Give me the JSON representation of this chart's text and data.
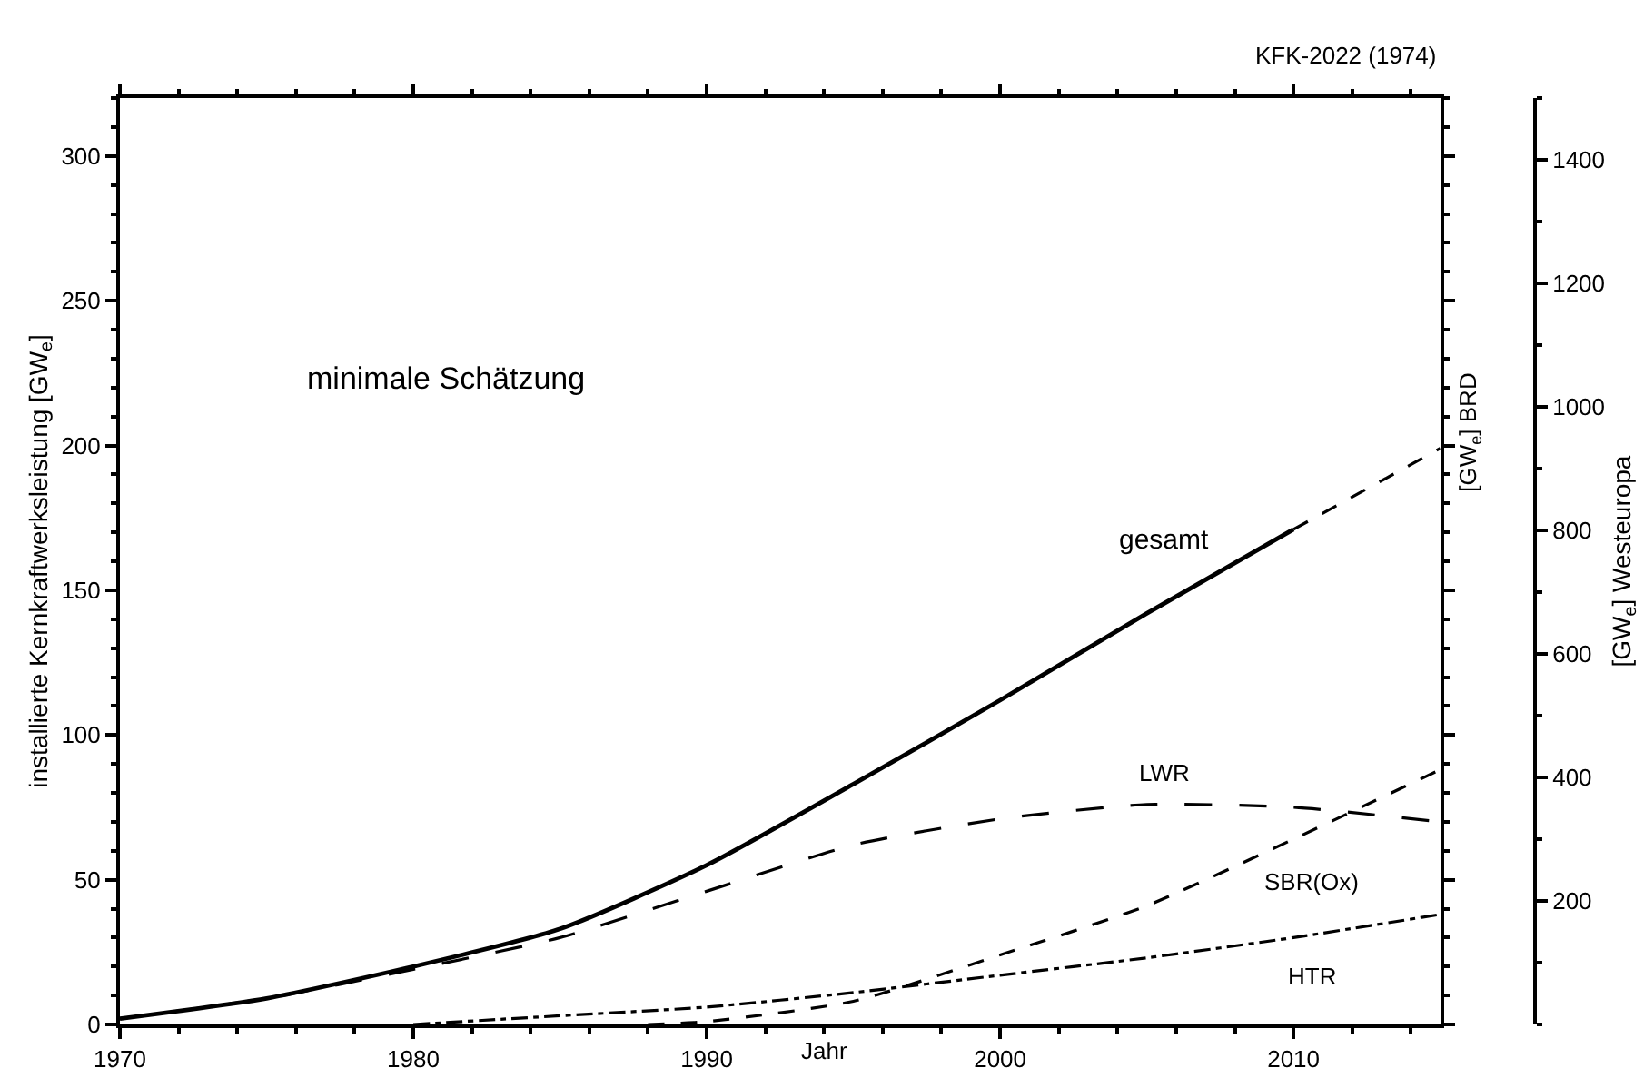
{
  "chart_data": {
    "type": "line",
    "series": [
      {
        "name": "gesamt",
        "color": "#000000",
        "line_style": "solid",
        "x": [
          1970,
          1975,
          1980,
          1985,
          1990,
          1995,
          2000,
          2005,
          2010
        ],
        "values": [
          2,
          9,
          20,
          33,
          55,
          83,
          112,
          142,
          171
        ]
      },
      {
        "color": "#000000",
        "line_style": "dashed",
        "x": [
          2010,
          2015
        ],
        "values": [
          171,
          199
        ]
      },
      {
        "name": "LWR",
        "color": "#000000",
        "line_style": "longdash",
        "x": [
          1970,
          1975,
          1980,
          1985,
          1990,
          1995,
          2000,
          2005,
          2010,
          2015
        ],
        "values": [
          2,
          9,
          19,
          30,
          46,
          62,
          71,
          76,
          75,
          70
        ]
      },
      {
        "name": "SBR(Ox)",
        "color": "#000000",
        "line_style": "dashed",
        "x": [
          1988,
          1990,
          1995,
          2000,
          2005,
          2010,
          2015
        ],
        "values": [
          0,
          1,
          8,
          24,
          41,
          64,
          88
        ]
      },
      {
        "name": "HTR",
        "color": "#000000",
        "line_style": "dashdot",
        "x": [
          1980,
          1985,
          1990,
          1995,
          2000,
          2005,
          2010,
          2015
        ],
        "values": [
          0,
          3,
          6,
          11,
          17,
          23,
          30,
          38
        ]
      }
    ],
    "xlabel": "Jahr",
    "ylabel": "installierte Kernkraftwerksleistung [GW$_{e}$]",
    "y2label": "[GW$_{e}$] Westeuropa",
    "xlim": [
      1970,
      2015
    ],
    "xticks": [
      1970,
      1980,
      1990,
      2000,
      2010
    ],
    "ylim": [
      0,
      320
    ],
    "yticks": [
      0,
      50,
      100,
      150,
      200,
      250,
      300
    ],
    "y2lim": [
      0,
      1500
    ],
    "y2ticks": [
      200,
      400,
      600,
      800,
      1000,
      1200,
      1400
    ],
    "annotations": [
      "KFK-2022 (1974)",
      "minimale Schätzung",
      "[GW$_{e}$] BRD"
    ],
    "legend": false,
    "marker": "none"
  }
}
